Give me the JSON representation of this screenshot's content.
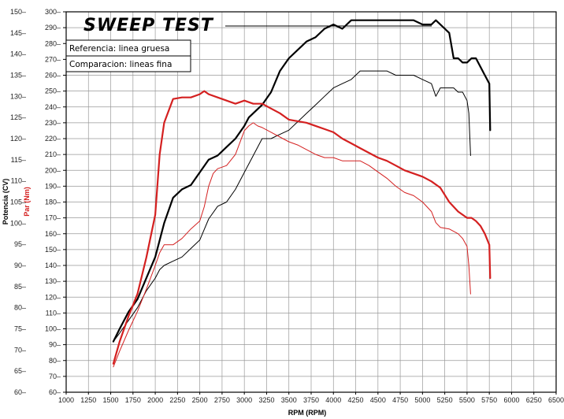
{
  "chart_data": {
    "type": "line",
    "title": "SWEEP TEST",
    "legend": [
      "Referencia: linea gruesa",
      "Comparacion: lineas fina"
    ],
    "xlabel": "RPM (RPM)",
    "ylabel_left": "Potencia (CV)",
    "ylabel_left_red": "Par (Nm)",
    "xlim": [
      1000,
      6500
    ],
    "xticks": [
      1000,
      1250,
      1500,
      1750,
      2000,
      2250,
      2500,
      2750,
      3000,
      3250,
      3500,
      3750,
      4000,
      4250,
      4500,
      4750,
      5000,
      5250,
      5500,
      5750,
      6000,
      6250,
      6500
    ],
    "ylim_power": [
      60,
      150
    ],
    "yticks_power": [
      60,
      65,
      70,
      75,
      80,
      85,
      90,
      95,
      100,
      105,
      110,
      115,
      120,
      125,
      130,
      135,
      140,
      145,
      150
    ],
    "ylim_torque": [
      60,
      300
    ],
    "yticks_torque": [
      60,
      70,
      80,
      90,
      100,
      110,
      120,
      130,
      140,
      150,
      160,
      170,
      180,
      190,
      200,
      210,
      220,
      230,
      240,
      250,
      260,
      270,
      280,
      290,
      300
    ],
    "colors": {
      "power": "#000000",
      "torque": "#d42020",
      "grid": "#999999"
    },
    "series": [
      {
        "name": "Potencia referencia (gruesa)",
        "axis": "power",
        "color": "#000000",
        "weight": "thick",
        "x": [
          1530,
          1600,
          1700,
          1800,
          1900,
          2000,
          2100,
          2200,
          2300,
          2400,
          2500,
          2600,
          2700,
          2800,
          2900,
          3000,
          3050,
          3100,
          3200,
          3300,
          3400,
          3500,
          3600,
          3700,
          3800,
          3900,
          4000,
          4100,
          4200,
          4300,
          4400,
          4500,
          4600,
          4700,
          4800,
          4900,
          5000,
          5100,
          5150,
          5200,
          5300,
          5350,
          5400,
          5450,
          5500,
          5550,
          5600,
          5650,
          5700,
          5750,
          5760
        ],
        "y": [
          72,
          75,
          79,
          82,
          87,
          92,
          100,
          106,
          108,
          109,
          112,
          115,
          116,
          118,
          120,
          123,
          125,
          126,
          128,
          131,
          136,
          139,
          141,
          143,
          144,
          146,
          147,
          146,
          148,
          148,
          148,
          148,
          148,
          148,
          148,
          148,
          147,
          147,
          148,
          147,
          145,
          139,
          139,
          138,
          138,
          139,
          139,
          137,
          135,
          133,
          122
        ]
      },
      {
        "name": "Potencia comparacion (fina)",
        "axis": "power",
        "color": "#000000",
        "weight": "thin",
        "x": [
          1530,
          1600,
          1700,
          1800,
          1900,
          2000,
          2050,
          2100,
          2200,
          2300,
          2400,
          2500,
          2600,
          2700,
          2800,
          2900,
          3000,
          3100,
          3200,
          3300,
          3400,
          3500,
          3600,
          3700,
          3800,
          3900,
          4000,
          4100,
          4200,
          4300,
          4400,
          4500,
          4600,
          4700,
          4800,
          4900,
          5000,
          5100,
          5150,
          5200,
          5300,
          5350,
          5400,
          5450,
          5500,
          5520,
          5540
        ],
        "y": [
          72,
          74,
          77,
          80,
          84,
          87,
          89,
          90,
          91,
          92,
          94,
          96,
          101,
          104,
          105,
          108,
          112,
          116,
          120,
          120,
          121,
          122,
          124,
          126,
          128,
          130,
          132,
          133,
          134,
          136,
          136,
          136,
          136,
          135,
          135,
          135,
          134,
          133,
          130,
          132,
          132,
          132,
          131,
          131,
          129,
          126,
          116
        ]
      },
      {
        "name": "Par referencia (gruesa)",
        "axis": "torque",
        "color": "#d42020",
        "weight": "thick",
        "x": [
          1530,
          1600,
          1700,
          1800,
          1900,
          2000,
          2050,
          2100,
          2200,
          2300,
          2400,
          2500,
          2550,
          2600,
          2700,
          2800,
          2900,
          3000,
          3100,
          3200,
          3300,
          3400,
          3500,
          3600,
          3700,
          3800,
          3900,
          4000,
          4100,
          4200,
          4300,
          4400,
          4500,
          4600,
          4700,
          4800,
          4900,
          5000,
          5100,
          5200,
          5300,
          5400,
          5500,
          5550,
          5600,
          5650,
          5700,
          5750,
          5760
        ],
        "y": [
          78,
          92,
          108,
          122,
          145,
          172,
          210,
          230,
          245,
          246,
          246,
          248,
          250,
          248,
          246,
          244,
          242,
          244,
          242,
          242,
          239,
          236,
          232,
          231,
          230,
          228,
          226,
          224,
          220,
          217,
          214,
          211,
          208,
          206,
          203,
          200,
          198,
          196,
          193,
          189,
          180,
          174,
          170,
          170,
          168,
          165,
          160,
          153,
          132
        ]
      },
      {
        "name": "Par comparacion (fina)",
        "axis": "torque",
        "color": "#d42020",
        "weight": "thin",
        "x": [
          1530,
          1600,
          1700,
          1800,
          1900,
          2000,
          2050,
          2100,
          2200,
          2300,
          2400,
          2500,
          2550,
          2600,
          2650,
          2700,
          2800,
          2900,
          3000,
          3050,
          3100,
          3150,
          3200,
          3300,
          3400,
          3500,
          3600,
          3700,
          3800,
          3900,
          4000,
          4100,
          4200,
          4300,
          4400,
          4500,
          4600,
          4700,
          4800,
          4900,
          5000,
          5100,
          5150,
          5200,
          5300,
          5400,
          5450,
          5500,
          5520,
          5540
        ],
        "y": [
          76,
          86,
          99,
          111,
          125,
          140,
          148,
          153,
          153,
          157,
          163,
          168,
          177,
          190,
          198,
          201,
          203,
          210,
          225,
          228,
          230,
          228,
          227,
          224,
          221,
          218,
          216,
          213,
          210,
          208,
          208,
          206,
          206,
          206,
          203,
          199,
          195,
          190,
          186,
          184,
          180,
          174,
          167,
          164,
          163,
          160,
          157,
          152,
          140,
          122
        ]
      }
    ]
  }
}
